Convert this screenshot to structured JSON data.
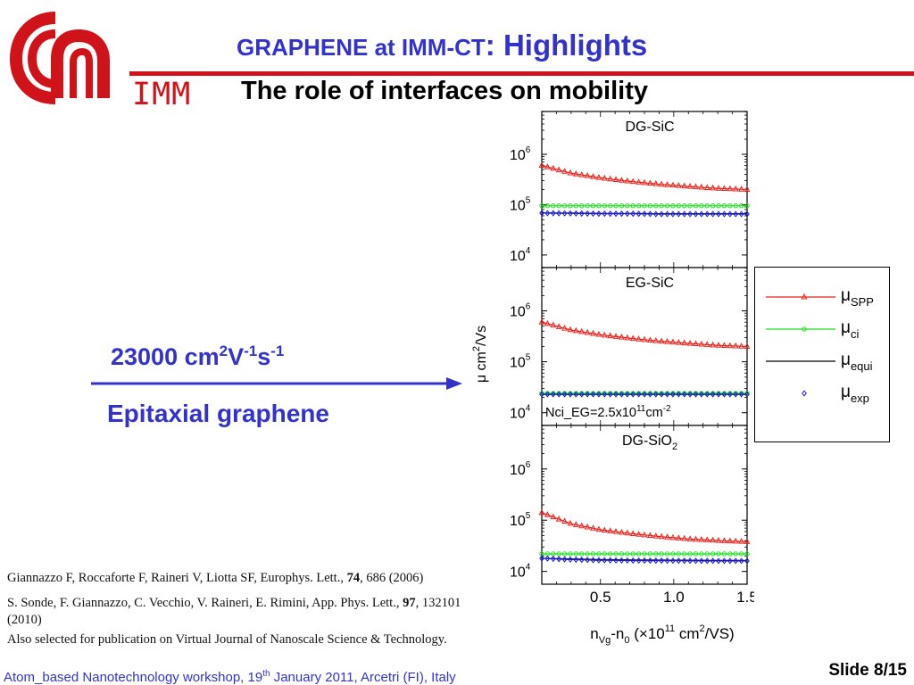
{
  "header": {
    "title_part1": "GRAPHENE at IMM-CT",
    "title_part2": ": Highlights",
    "subtitle": "The role of interfaces on mobility",
    "logo_text": "IMM"
  },
  "left": {
    "mobility_value": "23000 cm",
    "mobility_sup1": "2",
    "mobility_v": "V",
    "mobility_sup2": "-1",
    "mobility_s": "s",
    "mobility_sup3": "-1",
    "material": "Epitaxial graphene"
  },
  "references": [
    {
      "pre": "Giannazzo F, Roccaforte F, Raineri V, Liotta SF, Europhys. Lett., ",
      "bold": "74",
      "post": ", 686 (2006)"
    },
    {
      "pre": "S. Sonde, F. Giannazzo, C. Vecchio, V. Raineri, E. Rimini, App. Phys. Lett., ",
      "bold": "97",
      "post": ", 132101 (2010)"
    }
  ],
  "note": "Also selected for publication on Virtual Journal of Nanoscale Science & Technology.",
  "footer": {
    "text_pre": "Atom_based Nanotechnology workshop, 19",
    "text_sup": "th",
    "text_post": " January 2011, Arcetri (FI), Italy",
    "slide": "Slide 8/15"
  },
  "colors": {
    "accent_blue": "#3333cc",
    "logo_red": "#d0121b",
    "spp": "#e8201c",
    "ci": "#22dd22",
    "equi": "#000000",
    "exp": "#1a1acc"
  },
  "chart_data": {
    "type": "scatter",
    "y_scale": "log",
    "ylabel_mu": "μ",
    "ylabel_unit": " cm",
    "ylabel_sup": "2",
    "ylabel_tail": "/Vs",
    "xlabel_n": "n",
    "xlabel_sub1": "Vg",
    "xlabel_mid": "-n",
    "xlabel_sub2": "0",
    "xlabel_tail": " (×10",
    "xlabel_sup1": "11",
    "xlabel_unit": " cm",
    "xlabel_sup2": "2",
    "xlabel_end": "/VS)",
    "xlim": [
      0.1,
      1.5
    ],
    "xticks": [
      "0.5",
      "1.0",
      "1.5"
    ],
    "legend": [
      {
        "key": "spp",
        "label": "μ",
        "sub": "SPP",
        "marker": "triangle-line"
      },
      {
        "key": "ci",
        "label": "μ",
        "sub": "ci",
        "marker": "circle-line"
      },
      {
        "key": "equi",
        "label": "μ",
        "sub": "equi",
        "marker": "line"
      },
      {
        "key": "exp",
        "label": "μ",
        "sub": "exp",
        "marker": "diamond"
      }
    ],
    "legend_placement": "right",
    "panels": [
      {
        "name": "DG-SiC",
        "name_sub": "",
        "ylim_exp": [
          3.75,
          6.85
        ],
        "annotation": "",
        "annotation_sup": "",
        "series": {
          "spp": {
            "x": [
              0.1,
              0.3,
              0.5,
              0.7,
              0.9,
              1.1,
              1.3,
              1.5
            ],
            "y": [
              600000,
              420000,
              340000,
              290000,
              255000,
              230000,
              210000,
              200000
            ]
          },
          "ci": {
            "x": [
              0.1,
              0.3,
              0.5,
              0.7,
              0.9,
              1.1,
              1.3,
              1.5
            ],
            "y": [
              95000,
              95000,
              95000,
              95000,
              95000,
              95000,
              95000,
              95000
            ]
          },
          "equi": {
            "x": [
              0.1,
              0.3,
              0.5,
              0.7,
              0.9,
              1.1,
              1.3,
              1.5
            ],
            "y": [
              68000,
              68000,
              67000,
              67000,
              66000,
              66000,
              66000,
              66000
            ]
          },
          "exp": {
            "x": [
              0.1,
              0.3,
              0.5,
              0.7,
              0.9,
              1.1,
              1.3,
              1.5
            ],
            "y": [
              68000,
              67000,
              66000,
              66000,
              65000,
              65000,
              65000,
              65000
            ]
          }
        }
      },
      {
        "name": "EG-SiC",
        "name_sub": "",
        "ylim_exp": [
          3.75,
          6.85
        ],
        "annotation": "Nci_EG=2.5x10",
        "annotation_sup": "11",
        "annotation_tail": "cm",
        "annotation_sup2": "-2",
        "series": {
          "spp": {
            "x": [
              0.1,
              0.3,
              0.5,
              0.7,
              0.9,
              1.1,
              1.3,
              1.5
            ],
            "y": [
              600000,
              420000,
              340000,
              290000,
              255000,
              230000,
              210000,
              200000
            ]
          },
          "ci": {
            "x": [
              0.1,
              0.3,
              0.5,
              0.7,
              0.9,
              1.1,
              1.3,
              1.5
            ],
            "y": [
              24000,
              24000,
              24000,
              24000,
              24000,
              24000,
              24000,
              24000
            ]
          },
          "equi": {
            "x": [
              0.1,
              0.3,
              0.5,
              0.7,
              0.9,
              1.1,
              1.3,
              1.5
            ],
            "y": [
              23000,
              23000,
              23000,
              23000,
              23000,
              23000,
              23000,
              23000
            ]
          },
          "exp": {
            "x": [
              0.1,
              0.3,
              0.5,
              0.7,
              0.9,
              1.1,
              1.3,
              1.5
            ],
            "y": [
              23000,
              23000,
              23000,
              23000,
              23000,
              23000,
              23000,
              23000
            ]
          }
        }
      },
      {
        "name": "DG-SiO",
        "name_sub": "2",
        "ylim_exp": [
          3.75,
          6.85
        ],
        "annotation": "",
        "annotation_sup": "",
        "series": {
          "spp": {
            "x": [
              0.1,
              0.3,
              0.5,
              0.7,
              0.9,
              1.1,
              1.3,
              1.5
            ],
            "y": [
              140000,
              85000,
              65000,
              55000,
              48000,
              43000,
              40000,
              38000
            ]
          },
          "ci": {
            "x": [
              0.1,
              0.3,
              0.5,
              0.7,
              0.9,
              1.1,
              1.3,
              1.5
            ],
            "y": [
              22000,
              22000,
              22000,
              22000,
              22000,
              22000,
              22000,
              22000
            ]
          },
          "equi": {
            "x": [
              0.1,
              0.3,
              0.5,
              0.7,
              0.9,
              1.1,
              1.3,
              1.5
            ],
            "y": [
              18000,
              17500,
              17000,
              16800,
              16600,
              16500,
              16400,
              16300
            ]
          },
          "exp": {
            "x": [
              0.1,
              0.3,
              0.5,
              0.7,
              0.9,
              1.1,
              1.3,
              1.5
            ],
            "y": [
              18000,
              17000,
              16500,
              16300,
              16200,
              16100,
              16000,
              16000
            ]
          }
        }
      }
    ],
    "ytick_base": "10",
    "yticks_exp": [
      "6",
      "5",
      "4"
    ]
  }
}
